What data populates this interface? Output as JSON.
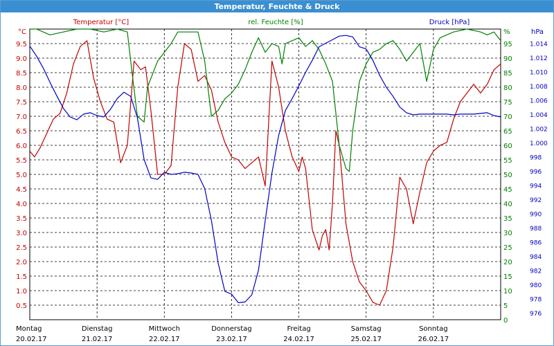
{
  "window": {
    "title": "Temperatur, Feuchte & Druck"
  },
  "chart_data": {
    "type": "line",
    "x_axis": {
      "days": [
        {
          "weekday": "Montag",
          "date": "20.02.17"
        },
        {
          "weekday": "Dienstag",
          "date": "21.02.17"
        },
        {
          "weekday": "Mittwoch",
          "date": "22.02.17"
        },
        {
          "weekday": "Donnerstag",
          "date": "23.02.17"
        },
        {
          "weekday": "Freitag",
          "date": "24.02.17"
        },
        {
          "weekday": "Samstag",
          "date": "25.02.17"
        },
        {
          "weekday": "Sonntag",
          "date": "26.02.17"
        }
      ],
      "range_days": [
        0,
        7
      ]
    },
    "axes": {
      "temperature": {
        "label": "Temperatur [°C]",
        "unit": "°C",
        "ylim": [
          0,
          10
        ],
        "ticks": [
          "0.5",
          "1.0",
          "1.5",
          "2.0",
          "2.5",
          "3.0",
          "3.5",
          "4.0",
          "4.5",
          "5.0",
          "5.5",
          "6.0",
          "6.5",
          "7.0",
          "7.5",
          "8.0",
          "8.5",
          "9.0",
          "9.5"
        ],
        "color": "#c00000"
      },
      "humidity": {
        "label": "rel. Feuchte [%]",
        "unit": "%",
        "ylim": [
          0,
          100
        ],
        "ticks": [
          "0",
          "5",
          "10",
          "15",
          "20",
          "25",
          "30",
          "35",
          "40",
          "45",
          "50",
          "55",
          "60",
          "65",
          "70",
          "75",
          "80",
          "85",
          "90",
          "95"
        ],
        "color": "#008000"
      },
      "pressure": {
        "label": "Druck [hPa]",
        "unit": "hPa",
        "ylim": [
          975,
          1016
        ],
        "ticks": [
          "976",
          "978",
          "980",
          "982",
          "984",
          "986",
          "988",
          "990",
          "992",
          "994",
          "996",
          "998",
          "1.000",
          "1.002",
          "1.004",
          "1.006",
          "1.008",
          "1.010",
          "1.012",
          "1.014"
        ],
        "color": "#0000c0"
      }
    },
    "grid": true,
    "series": [
      {
        "name": "Temperatur [°C]",
        "axis": "temperature",
        "color": "#c00000",
        "x": [
          0,
          0.07,
          0.15,
          0.25,
          0.35,
          0.45,
          0.55,
          0.65,
          0.75,
          0.85,
          0.95,
          1.05,
          1.15,
          1.25,
          1.35,
          1.45,
          1.55,
          1.65,
          1.72,
          1.8,
          1.9,
          2.0,
          2.1,
          2.2,
          2.3,
          2.4,
          2.5,
          2.6,
          2.7,
          2.8,
          2.9,
          3.0,
          3.1,
          3.2,
          3.3,
          3.4,
          3.5,
          3.6,
          3.7,
          3.8,
          3.9,
          4.0,
          4.05,
          4.1,
          4.2,
          4.3,
          4.35,
          4.4,
          4.45,
          4.5,
          4.55,
          4.6,
          4.7,
          4.8,
          4.9,
          5.0,
          5.1,
          5.2,
          5.3,
          5.4,
          5.5,
          5.6,
          5.7,
          5.8,
          5.9,
          6.0,
          6.1,
          6.2,
          6.3,
          6.4,
          6.5,
          6.6,
          6.7,
          6.8,
          6.9,
          7.0
        ],
        "values": [
          5.8,
          5.6,
          5.9,
          6.4,
          6.9,
          7.1,
          7.8,
          8.8,
          9.4,
          9.6,
          8.3,
          7.5,
          6.9,
          6.8,
          5.4,
          6.0,
          8.9,
          8.6,
          8.7,
          7.2,
          5.0,
          5.0,
          5.3,
          8.0,
          9.5,
          9.3,
          8.2,
          8.4,
          7.9,
          6.8,
          6.1,
          5.6,
          5.5,
          5.2,
          5.4,
          5.6,
          4.6,
          8.9,
          8.0,
          6.5,
          5.6,
          5.1,
          5.6,
          5.2,
          3.1,
          2.4,
          2.9,
          3.1,
          2.4,
          4.0,
          6.5,
          6.0,
          3.3,
          2.0,
          1.3,
          1.0,
          0.6,
          0.5,
          1.0,
          2.5,
          4.9,
          4.5,
          3.3,
          4.4,
          5.4,
          5.8,
          6.0,
          6.1,
          6.9,
          7.5,
          7.8,
          8.1,
          7.8,
          8.1,
          8.6,
          8.8
        ]
      },
      {
        "name": "rel. Feuchte [%]",
        "axis": "humidity",
        "color": "#008000",
        "x": [
          0,
          0.1,
          0.2,
          0.3,
          0.5,
          0.7,
          0.9,
          1.1,
          1.3,
          1.45,
          1.52,
          1.6,
          1.7,
          1.75,
          1.9,
          2.1,
          2.2,
          2.3,
          2.5,
          2.6,
          2.7,
          2.8,
          2.9,
          3.0,
          3.1,
          3.2,
          3.3,
          3.4,
          3.5,
          3.6,
          3.7,
          3.75,
          3.8,
          3.9,
          4.0,
          4.1,
          4.2,
          4.3,
          4.4,
          4.5,
          4.6,
          4.7,
          4.75,
          4.8,
          4.9,
          5.0,
          5.1,
          5.2,
          5.3,
          5.4,
          5.5,
          5.6,
          5.7,
          5.8,
          5.9,
          6.0,
          6.1,
          6.3,
          6.5,
          6.7,
          6.8,
          6.9,
          7.0
        ],
        "values": [
          100,
          100,
          99,
          98,
          99,
          100,
          100,
          99,
          100,
          99,
          85,
          70,
          68,
          80,
          89,
          95,
          99,
          99,
          99,
          89,
          70,
          72,
          76,
          78,
          81,
          86,
          92,
          97,
          92,
          95,
          94,
          88,
          95,
          96,
          97,
          94,
          96,
          93,
          88,
          82,
          60,
          52,
          51,
          65,
          82,
          88,
          92,
          93,
          95,
          96,
          93,
          89,
          92,
          95,
          82,
          93,
          97,
          99,
          100,
          99,
          98,
          99,
          96
        ]
      },
      {
        "name": "Druck [hPa]",
        "axis": "pressure",
        "color": "#0000c0",
        "x": [
          0,
          0.1,
          0.2,
          0.3,
          0.4,
          0.5,
          0.6,
          0.7,
          0.8,
          0.9,
          1.0,
          1.1,
          1.2,
          1.3,
          1.4,
          1.5,
          1.6,
          1.7,
          1.8,
          1.9,
          2.0,
          2.1,
          2.2,
          2.3,
          2.4,
          2.5,
          2.6,
          2.7,
          2.8,
          2.9,
          3.0,
          3.1,
          3.2,
          3.3,
          3.4,
          3.5,
          3.6,
          3.7,
          3.8,
          3.9,
          4.0,
          4.1,
          4.2,
          4.3,
          4.4,
          4.5,
          4.6,
          4.7,
          4.8,
          4.9,
          5.0,
          5.1,
          5.2,
          5.3,
          5.4,
          5.5,
          5.6,
          5.7,
          5.8,
          5.9,
          6.0,
          6.1,
          6.2,
          6.3,
          6.4,
          6.5,
          6.6,
          6.7,
          6.8,
          6.9,
          7.0
        ],
        "values": [
          1013.6,
          1012.2,
          1010.5,
          1008.5,
          1006.6,
          1004.8,
          1003.6,
          1003.2,
          1004.0,
          1004.2,
          1003.8,
          1003.6,
          1004.7,
          1006.2,
          1007.1,
          1006.5,
          1003.5,
          997.6,
          995.0,
          994.8,
          995.8,
          995.5,
          995.6,
          995.8,
          995.7,
          995.5,
          993.5,
          989.0,
          983.0,
          979.0,
          978.6,
          977.4,
          977.5,
          978.5,
          982.0,
          989.0,
          995.7,
          1001.0,
          1004.5,
          1006.2,
          1008.0,
          1009.9,
          1011.6,
          1013.5,
          1014.0,
          1014.5,
          1015.0,
          1015.1,
          1014.9,
          1013.5,
          1013.2,
          1011.6,
          1009.5,
          1007.8,
          1006.5,
          1005.0,
          1004.2,
          1003.9,
          1004.0,
          1004.0,
          1004.0,
          1004.0,
          1004.0,
          1003.9,
          1004.0,
          1004.0,
          1004.0,
          1004.1,
          1004.2,
          1003.8,
          1003.6
        ]
      }
    ]
  }
}
